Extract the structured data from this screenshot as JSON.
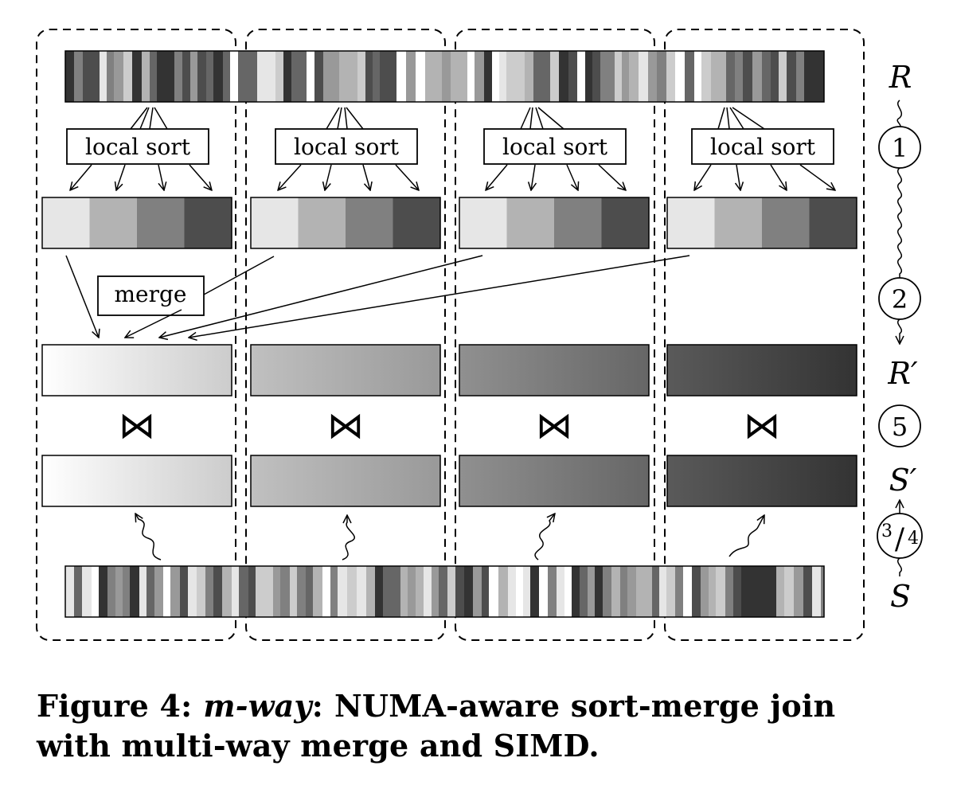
{
  "labels": {
    "local_sort": "local sort",
    "merge": "merge",
    "join_symbol": "⋈",
    "R": "R",
    "R_prime": "R′",
    "S": "S",
    "S_prime": "S′",
    "phase_1": "1",
    "phase_2": "2",
    "phase_5": "5",
    "phase_34_num": "3",
    "phase_34_slash": "/",
    "phase_34_den": "4"
  },
  "caption": {
    "figure_label": "Figure 4:",
    "algorithm": "m-way",
    "colon": ":",
    "text_line1": "NUMA-aware sort-merge join",
    "text_line2": "with multi-way merge and SIMD."
  },
  "colors": {
    "run_shades": [
      "#e6e6e6",
      "#b3b3b3",
      "#808080",
      "#4d4d4d"
    ],
    "partition_gradients": [
      [
        "#ffffff",
        "#cccccc"
      ],
      [
        "#c0c0c0",
        "#999999"
      ],
      [
        "#909090",
        "#666666"
      ],
      [
        "#5a5a5a",
        "#333333"
      ]
    ]
  }
}
